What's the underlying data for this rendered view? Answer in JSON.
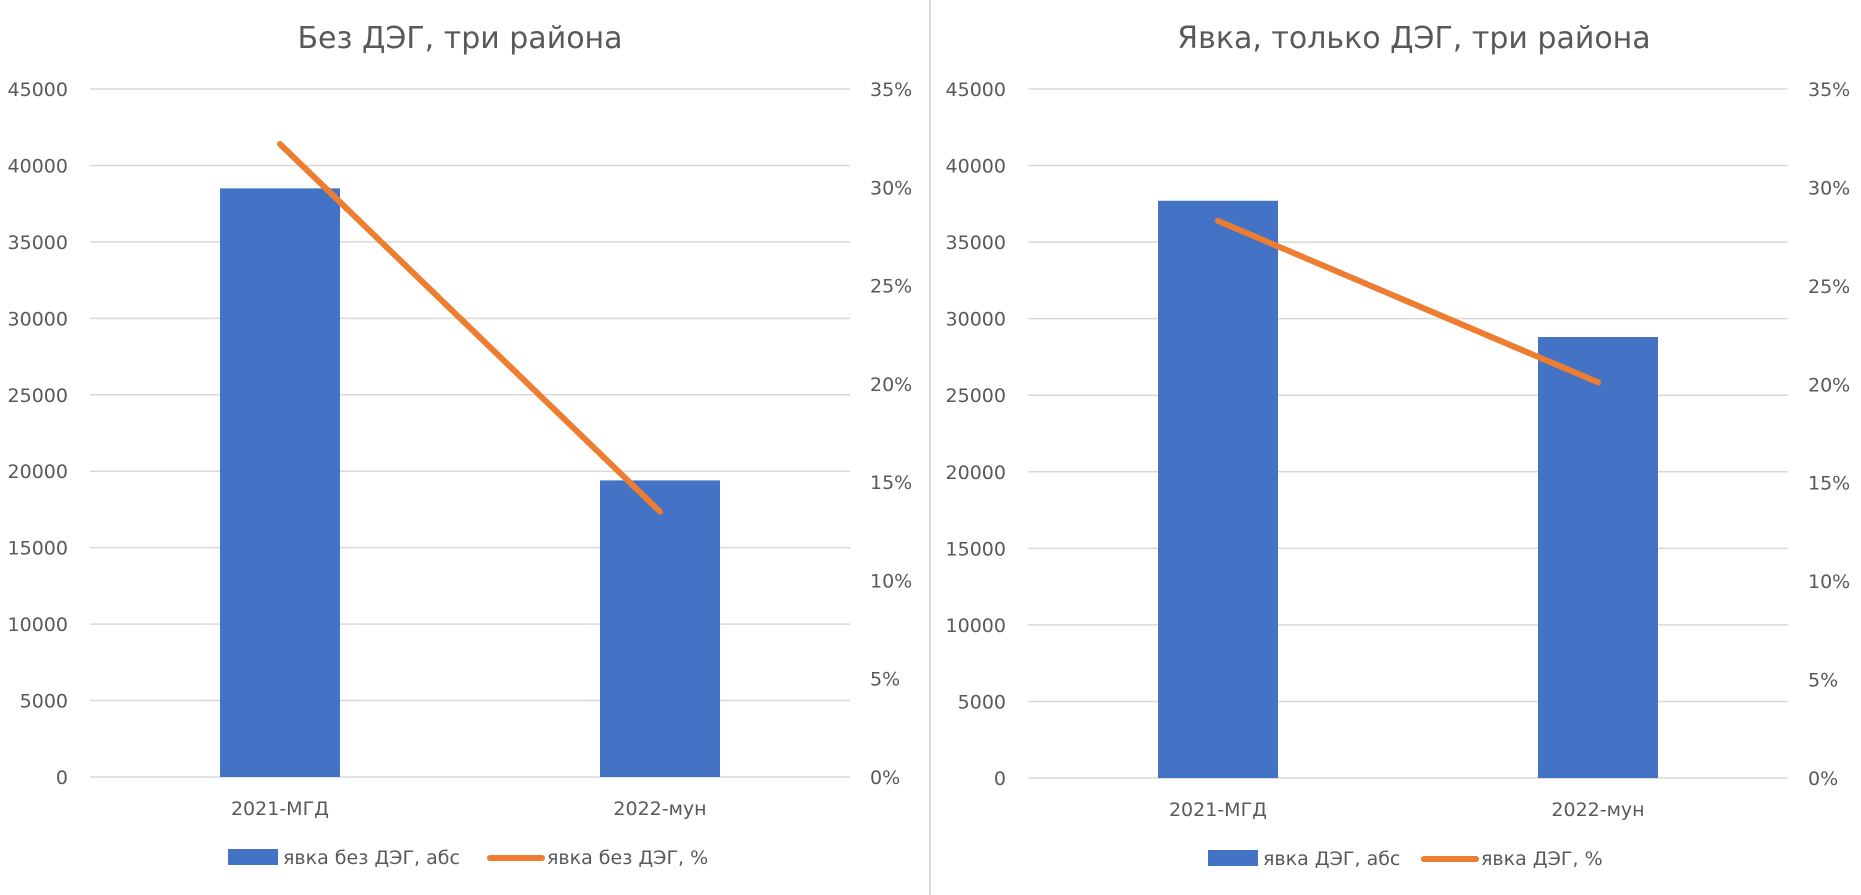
{
  "chart_data": [
    {
      "type": "bar+line",
      "title": "Без ДЭГ, три района",
      "categories": [
        "2021-МГД",
        "2022-мун"
      ],
      "series": [
        {
          "name": "явка без ДЭГ, абс",
          "type": "bar",
          "axis": "left",
          "values": [
            38500,
            19400
          ],
          "color": "#4472c4"
        },
        {
          "name": "явка без ДЭГ, %",
          "type": "line",
          "axis": "right",
          "values": [
            0.322,
            0.135
          ],
          "color": "#ed7d31"
        }
      ],
      "y_left": {
        "min": 0,
        "max": 45000,
        "step": 5000,
        "ticks": [
          "0",
          "5000",
          "10000",
          "15000",
          "20000",
          "25000",
          "30000",
          "35000",
          "40000",
          "45000"
        ]
      },
      "y_right": {
        "min": 0,
        "max": 0.35,
        "step": 0.05,
        "ticks": [
          "0%",
          "5%",
          "10%",
          "15%",
          "20%",
          "25%",
          "30%",
          "35%"
        ]
      },
      "grid": true,
      "legend": "bottom"
    },
    {
      "type": "bar+line",
      "title": "Явка, только ДЭГ, три района",
      "categories": [
        "2021-МГД",
        "2022-мун"
      ],
      "series": [
        {
          "name": "явка ДЭГ, абс",
          "type": "bar",
          "axis": "left",
          "values": [
            37700,
            28800
          ],
          "color": "#4472c4"
        },
        {
          "name": "явка ДЭГ, %",
          "type": "line",
          "axis": "right",
          "values": [
            0.283,
            0.201
          ],
          "color": "#ed7d31"
        }
      ],
      "y_left": {
        "min": 0,
        "max": 45000,
        "step": 5000,
        "ticks": [
          "0",
          "5000",
          "10000",
          "15000",
          "20000",
          "25000",
          "30000",
          "35000",
          "40000",
          "45000"
        ]
      },
      "y_right": {
        "min": 0,
        "max": 0.35,
        "step": 0.05,
        "ticks": [
          "0%",
          "5%",
          "10%",
          "15%",
          "20%",
          "25%",
          "30%",
          "35%"
        ]
      },
      "grid": true,
      "legend": "bottom"
    }
  ]
}
